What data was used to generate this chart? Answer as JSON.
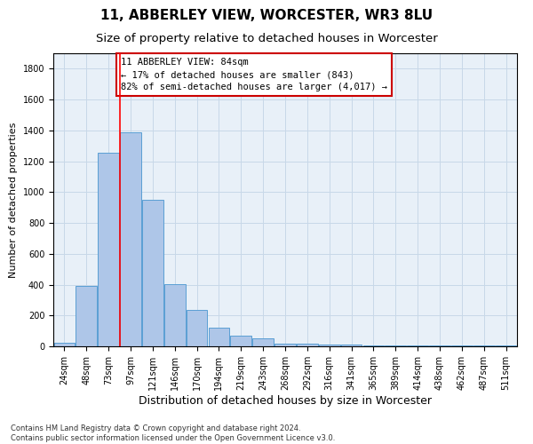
{
  "title": "11, ABBERLEY VIEW, WORCESTER, WR3 8LU",
  "subtitle": "Size of property relative to detached houses in Worcester",
  "xlabel": "Distribution of detached houses by size in Worcester",
  "ylabel": "Number of detached properties",
  "footer_line1": "Contains HM Land Registry data © Crown copyright and database right 2024.",
  "footer_line2": "Contains public sector information licensed under the Open Government Licence v3.0.",
  "categories": [
    "24sqm",
    "48sqm",
    "73sqm",
    "97sqm",
    "121sqm",
    "146sqm",
    "170sqm",
    "194sqm",
    "219sqm",
    "243sqm",
    "268sqm",
    "292sqm",
    "316sqm",
    "341sqm",
    "365sqm",
    "389sqm",
    "414sqm",
    "438sqm",
    "462sqm",
    "487sqm",
    "511sqm"
  ],
  "values": [
    25,
    390,
    1258,
    1390,
    950,
    405,
    235,
    120,
    70,
    50,
    20,
    15,
    10,
    10,
    5,
    5,
    5,
    5,
    5,
    5,
    5
  ],
  "bar_color": "#aec6e8",
  "bar_edge_color": "#5a9fd4",
  "red_line_x": 2.5,
  "annotation_text_line1": "11 ABBERLEY VIEW: 84sqm",
  "annotation_text_line2": "← 17% of detached houses are smaller (843)",
  "annotation_text_line3": "82% of semi-detached houses are larger (4,017) →",
  "annotation_box_color": "#ffffff",
  "annotation_box_edge_color": "#cc0000",
  "ylim": [
    0,
    1900
  ],
  "yticks": [
    0,
    200,
    400,
    600,
    800,
    1000,
    1200,
    1400,
    1600,
    1800
  ],
  "background_color": "#ffffff",
  "grid_color": "#c8d8e8",
  "title_fontsize": 11,
  "subtitle_fontsize": 9.5,
  "xlabel_fontsize": 9,
  "ylabel_fontsize": 8,
  "tick_fontsize": 7,
  "annotation_fontsize": 7.5,
  "footer_fontsize": 6
}
